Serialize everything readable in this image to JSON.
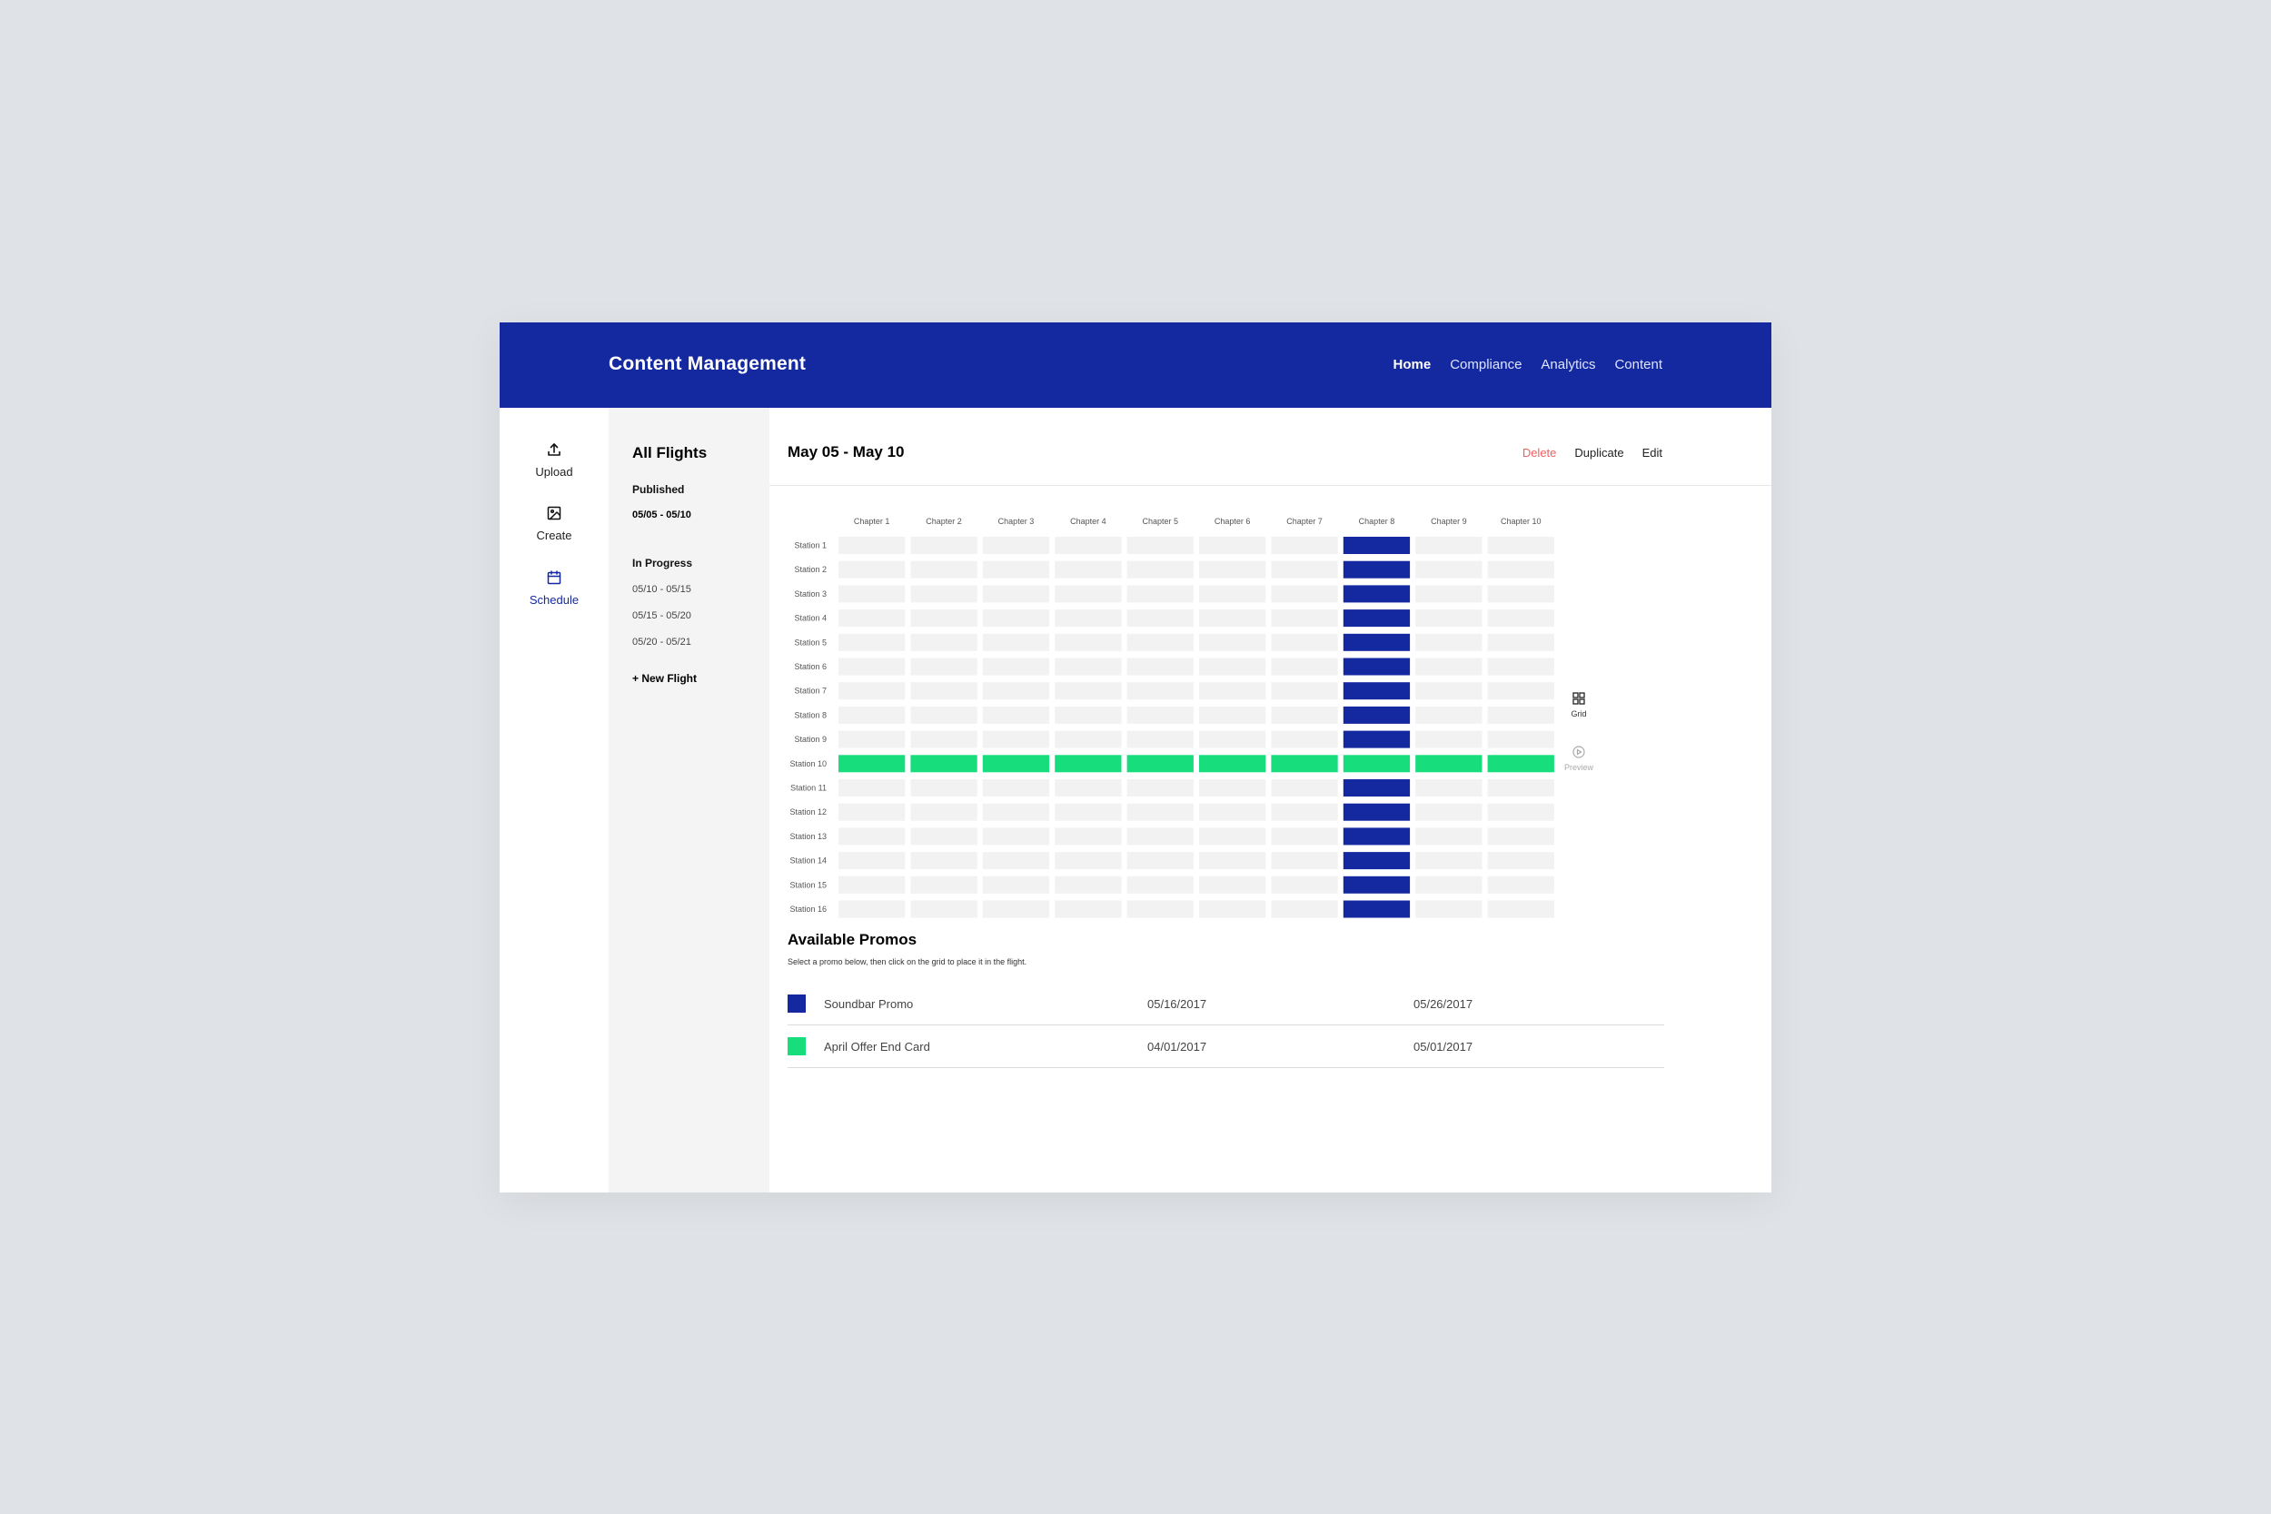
{
  "app": {
    "title": "Content Management",
    "brand_color": "#1428a0"
  },
  "nav": {
    "items": [
      {
        "label": "Home",
        "active": true
      },
      {
        "label": "Compliance",
        "active": false
      },
      {
        "label": "Analytics",
        "active": false
      },
      {
        "label": "Content",
        "active": false
      }
    ]
  },
  "sidebar": {
    "items": [
      {
        "label": "Upload",
        "icon": "upload-icon",
        "active": false
      },
      {
        "label": "Create",
        "icon": "image-icon",
        "active": false
      },
      {
        "label": "Schedule",
        "icon": "calendar-icon",
        "active": true
      }
    ]
  },
  "flights": {
    "title": "All Flights",
    "published_label": "Published",
    "published": [
      "05/05 - 05/10"
    ],
    "in_progress_label": "In Progress",
    "in_progress": [
      "05/10 - 05/15",
      "05/15 - 05/20",
      "05/20 - 05/21"
    ],
    "new_flight_label": "+ New Flight"
  },
  "header": {
    "date_range": "May 05 - May 10",
    "actions": {
      "delete": "Delete",
      "duplicate": "Duplicate",
      "edit": "Edit"
    }
  },
  "grid": {
    "columns": [
      "Chapter 1",
      "Chapter 2",
      "Chapter 3",
      "Chapter 4",
      "Chapter 5",
      "Chapter 6",
      "Chapter 7",
      "Chapter 8",
      "Chapter 9",
      "Chapter 10"
    ],
    "rows": [
      "Station 1",
      "Station 2",
      "Station 3",
      "Station 4",
      "Station 5",
      "Station 6",
      "Station 7",
      "Station 8",
      "Station 9",
      "Station 10",
      "Station 11",
      "Station 12",
      "Station 13",
      "Station 14",
      "Station 15",
      "Station 16"
    ],
    "placements": [
      {
        "promo": "soundbar",
        "column": "Chapter 8",
        "rows": "all"
      },
      {
        "promo": "april",
        "row": "Station 10",
        "columns": "all"
      }
    ],
    "empty_color": "#f2f2f2"
  },
  "view_toggle": {
    "grid_label": "Grid",
    "preview_label": "Preview"
  },
  "promos": {
    "title": "Available Promos",
    "help": "Select a promo below, then click on the grid to place it in the flight.",
    "items": [
      {
        "id": "soundbar",
        "name": "Soundbar Promo",
        "start": "05/16/2017",
        "end": "05/26/2017",
        "color": "#1428a0"
      },
      {
        "id": "april",
        "name": "April Offer End Card",
        "start": "04/01/2017",
        "end": "05/01/2017",
        "color": "#17dd7c"
      }
    ]
  }
}
